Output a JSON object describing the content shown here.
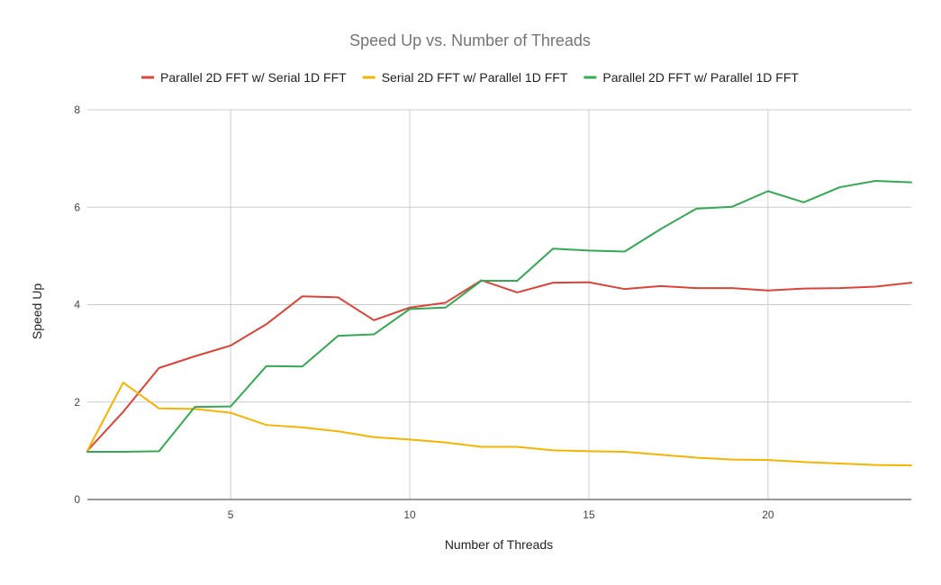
{
  "chart_data": {
    "type": "line",
    "title": "Speed Up vs. Number of Threads",
    "xlabel": "Number of Threads",
    "ylabel": "Speed Up",
    "xlim": [
      1,
      24
    ],
    "ylim": [
      0,
      8
    ],
    "x_ticks": [
      5,
      10,
      15,
      20
    ],
    "y_ticks": [
      0,
      2,
      4,
      6,
      8
    ],
    "grid": true,
    "legend_position": "top",
    "x": [
      1,
      2,
      3,
      4,
      5,
      6,
      7,
      8,
      9,
      10,
      11,
      12,
      13,
      14,
      15,
      16,
      17,
      18,
      19,
      20,
      21,
      22,
      23,
      24
    ],
    "series": [
      {
        "name": "Parallel 2D FFT w/ Serial 1D FFT",
        "color": "#db4437",
        "values": [
          1.0,
          1.8,
          2.7,
          2.94,
          3.16,
          3.6,
          4.17,
          4.15,
          3.68,
          3.94,
          4.04,
          4.5,
          4.25,
          4.45,
          4.46,
          4.32,
          4.38,
          4.34,
          4.34,
          4.29,
          4.33,
          4.34,
          4.37,
          4.45
        ]
      },
      {
        "name": "Serial 2D FFT w/ Parallel 1D FFT",
        "color": "#f4b400",
        "values": [
          1.0,
          2.4,
          1.87,
          1.86,
          1.78,
          1.53,
          1.48,
          1.4,
          1.28,
          1.23,
          1.17,
          1.08,
          1.08,
          1.01,
          0.99,
          0.98,
          0.92,
          0.86,
          0.82,
          0.81,
          0.77,
          0.74,
          0.71,
          0.7
        ]
      },
      {
        "name": "Parallel 2D FFT w/ Parallel 1D FFT",
        "color": "#34a853",
        "values": [
          0.98,
          0.98,
          0.99,
          1.9,
          1.91,
          2.74,
          2.73,
          3.36,
          3.39,
          3.91,
          3.94,
          4.49,
          4.49,
          5.15,
          5.11,
          5.09,
          5.55,
          5.97,
          6.01,
          6.33,
          6.1,
          6.41,
          6.54,
          6.51
        ]
      }
    ]
  }
}
